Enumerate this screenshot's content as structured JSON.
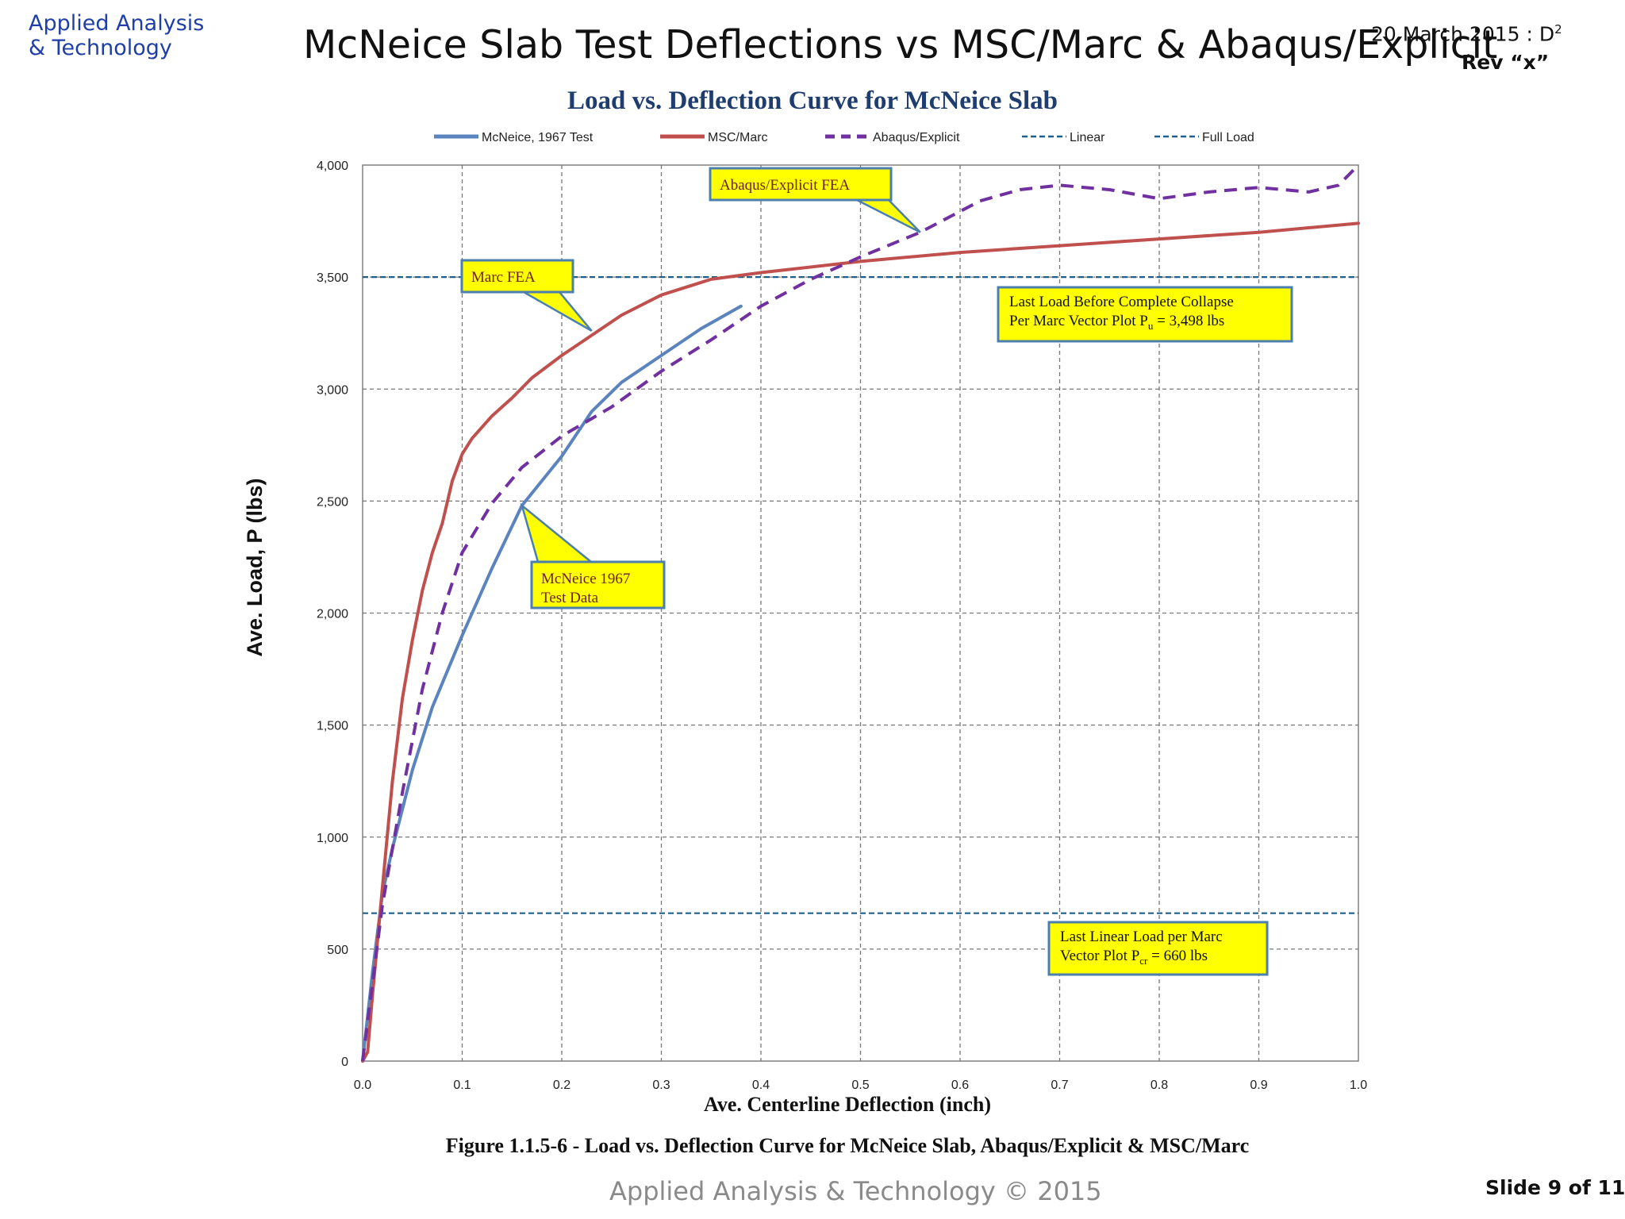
{
  "header": {
    "logo_line1": "Applied Analysis",
    "logo_line2": "& Technology",
    "title": "McNeice Slab Test Deflections vs MSC/Marc & Abaqus/Explicit",
    "date": "20 March 2015 : D",
    "date_sup": "2",
    "rev": "Rev “x”"
  },
  "footer": {
    "copyright": "Applied Analysis & Technology © 2015",
    "slide": "Slide 9 of 11"
  },
  "chart_data": {
    "type": "line",
    "title": "Load vs. Deflection Curve for McNeice Slab",
    "xlabel": "Ave. Centerline Deflection (inch)",
    "ylabel": "Ave. Load, P (lbs)",
    "caption": "Figure 1.1.5-6 - Load vs.  Deflection Curve for McNeice Slab, Abaqus/Explicit & MSC/Marc",
    "xlim": [
      0,
      1.0
    ],
    "ylim": [
      0,
      4000
    ],
    "x_ticks": [
      0.0,
      0.1,
      0.2,
      0.3,
      0.4,
      0.5,
      0.6,
      0.7,
      0.8,
      0.9,
      1.0
    ],
    "x_tick_labels": [
      "0.0",
      "0.1",
      "0.2",
      "0.3",
      "0.4",
      "0.5",
      "0.6",
      "0.7",
      "0.8",
      "0.9",
      "1.0"
    ],
    "y_ticks": [
      0,
      500,
      1000,
      1500,
      2000,
      2500,
      3000,
      3500,
      4000
    ],
    "y_tick_labels": [
      "0",
      "500",
      "1,000",
      "1,500",
      "2,000",
      "2,500",
      "3,000",
      "3,500",
      "4,000"
    ],
    "grid": true,
    "legend_position": "top",
    "series": [
      {
        "name": "McNeice, 1967 Test",
        "color": "#5b84bf",
        "style": "solid",
        "x": [
          0.0,
          0.01,
          0.02,
          0.03,
          0.05,
          0.07,
          0.1,
          0.13,
          0.16,
          0.2,
          0.23,
          0.26,
          0.3,
          0.34,
          0.38
        ],
        "y": [
          0,
          400,
          750,
          950,
          1300,
          1580,
          1900,
          2200,
          2480,
          2700,
          2900,
          3030,
          3150,
          3270,
          3370
        ]
      },
      {
        "name": "MSC/Marc",
        "color": "#c0504d",
        "style": "solid",
        "x": [
          0.0,
          0.005,
          0.01,
          0.02,
          0.03,
          0.04,
          0.05,
          0.06,
          0.07,
          0.08,
          0.09,
          0.1,
          0.11,
          0.13,
          0.15,
          0.17,
          0.2,
          0.23,
          0.26,
          0.3,
          0.35,
          0.4,
          0.5,
          0.6,
          0.7,
          0.8,
          0.9,
          1.0
        ],
        "y": [
          0,
          40,
          300,
          780,
          1250,
          1620,
          1880,
          2100,
          2270,
          2400,
          2590,
          2710,
          2780,
          2880,
          2960,
          3050,
          3150,
          3240,
          3330,
          3420,
          3490,
          3520,
          3570,
          3610,
          3640,
          3670,
          3700,
          3740
        ]
      },
      {
        "name": "Abaqus/Explicit",
        "color": "#7030a0",
        "style": "dashed",
        "x": [
          0.0,
          0.01,
          0.02,
          0.04,
          0.06,
          0.08,
          0.1,
          0.13,
          0.16,
          0.2,
          0.25,
          0.3,
          0.35,
          0.4,
          0.45,
          0.5,
          0.56,
          0.62,
          0.66,
          0.7,
          0.75,
          0.8,
          0.85,
          0.9,
          0.95,
          0.98,
          1.0
        ],
        "y": [
          0,
          350,
          700,
          1200,
          1660,
          2000,
          2270,
          2490,
          2650,
          2790,
          2920,
          3080,
          3220,
          3370,
          3490,
          3590,
          3700,
          3840,
          3890,
          3910,
          3890,
          3850,
          3880,
          3900,
          3880,
          3910,
          4000
        ]
      },
      {
        "name": "Linear",
        "color": "#1f5f8b",
        "style": "short-dash",
        "x": [
          0.0,
          1.0
        ],
        "y": [
          660,
          660
        ]
      },
      {
        "name": "Full Load",
        "color": "#1f5f8b",
        "style": "short-dash",
        "x": [
          0.0,
          1.0
        ],
        "y": [
          3500,
          3500
        ]
      }
    ],
    "annotations": [
      {
        "lines": [
          "Abaqus/Explicit FEA"
        ],
        "target_x": 0.56,
        "target_y": 3700
      },
      {
        "lines": [
          "Marc FEA"
        ],
        "target_x": 0.23,
        "target_y": 3260
      },
      {
        "lines": [
          "McNeice 1967",
          "Test Data"
        ],
        "target_x": 0.16,
        "target_y": 2480
      },
      {
        "lines": [
          "Last Load Before Complete Collapse",
          "Per Marc Vector Plot P",
          "u",
          " = 3,498 lbs"
        ]
      },
      {
        "lines": [
          "Last Linear Load per Marc",
          "Vector Plot P",
          "cr",
          " = 660 lbs"
        ]
      }
    ]
  }
}
